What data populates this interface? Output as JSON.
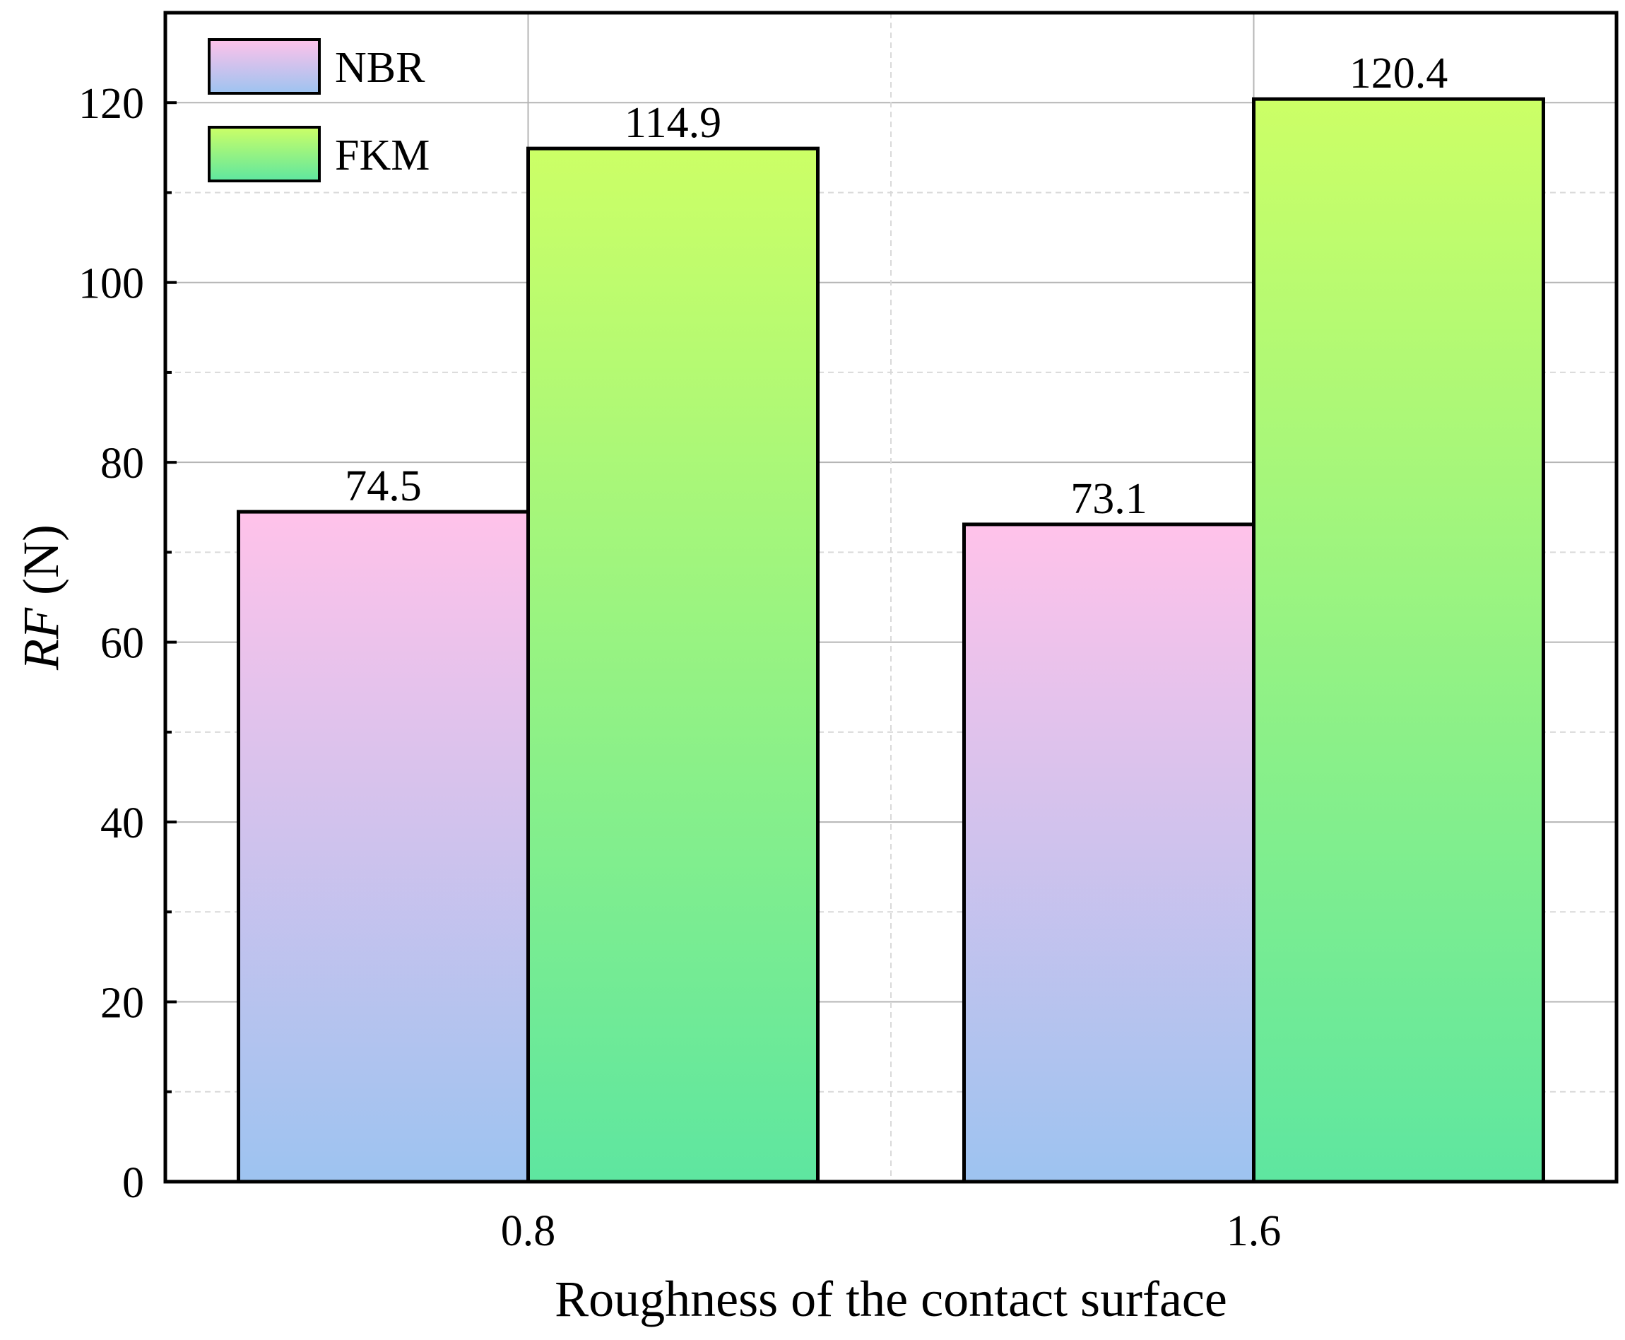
{
  "chart_data": {
    "type": "bar",
    "title": "",
    "xlabel": "Roughness of the contact surface",
    "ylabel_italic": "RF",
    "ylabel_unit": " (N)",
    "categories": [
      "0.8",
      "1.6"
    ],
    "series": [
      {
        "name": "NBR",
        "values": [
          74.5,
          73.1
        ],
        "labels": [
          "74.5",
          "73.1"
        ],
        "gradient": {
          "top": "#ffc2ea",
          "bottom": "#9dc3f0"
        }
      },
      {
        "name": "FKM",
        "values": [
          114.9,
          120.4
        ],
        "labels": [
          "114.9",
          "120.4"
        ],
        "gradient": {
          "top": "#ccff66",
          "bottom": "#5ee6a0"
        }
      }
    ],
    "ylim": [
      0,
      130
    ],
    "yticks": [
      0,
      20,
      40,
      60,
      80,
      100,
      120
    ],
    "yticks_minor": [
      10,
      30,
      50,
      70,
      90,
      110
    ],
    "grid": true,
    "legend_position": "top-left"
  }
}
